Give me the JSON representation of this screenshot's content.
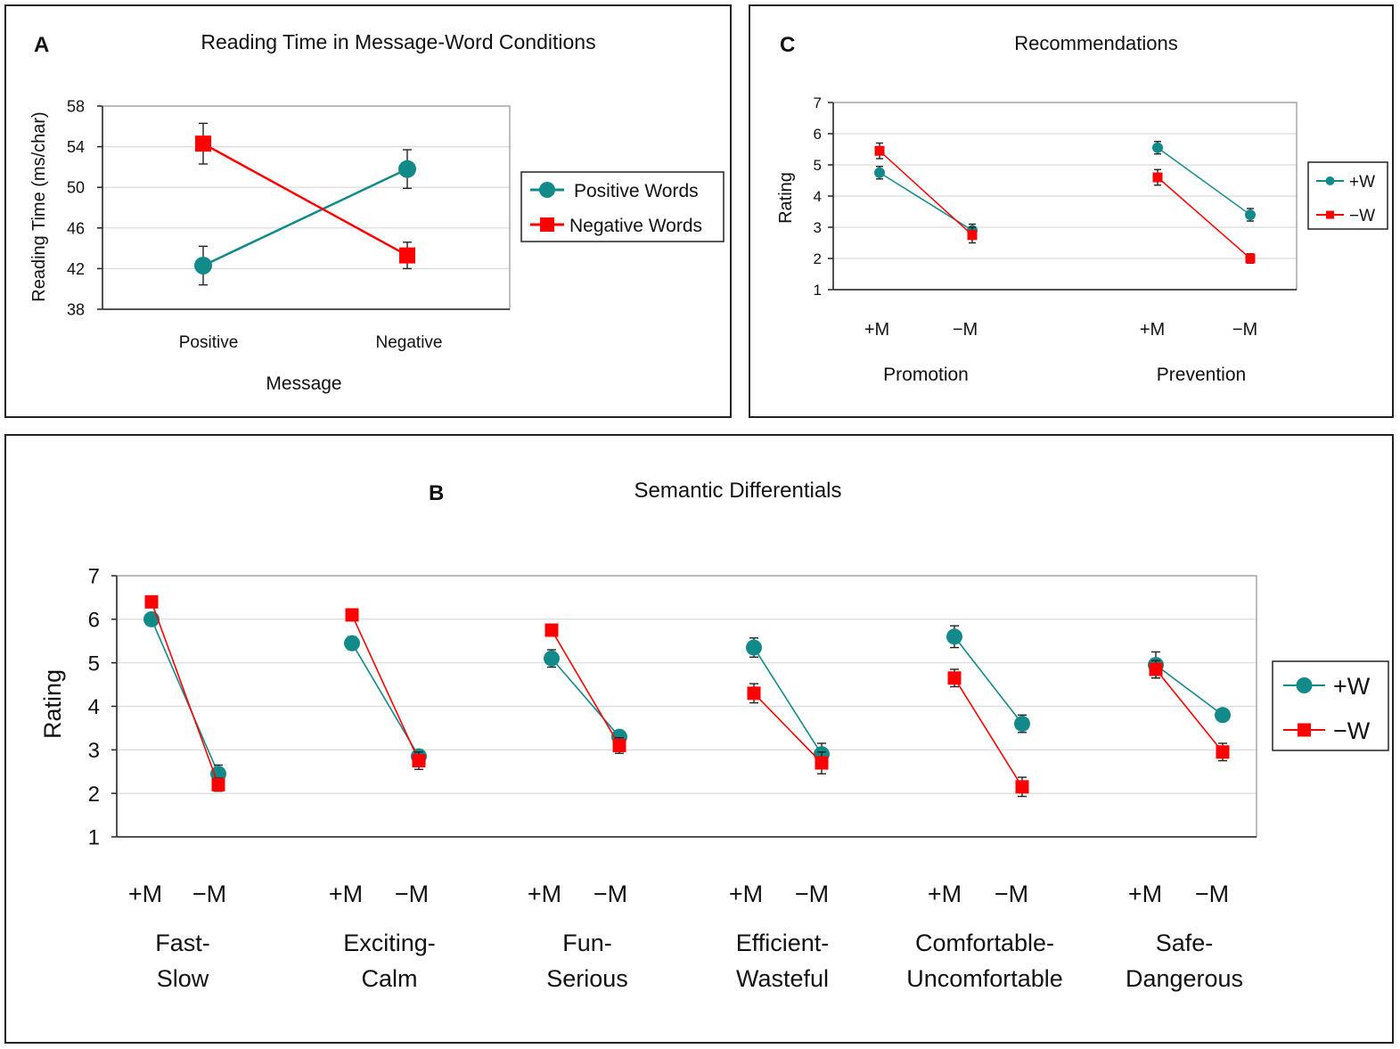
{
  "colors": {
    "teal": "#138A8A",
    "red": "#FF0000",
    "text": "#111111"
  },
  "chart_data": [
    {
      "id": "A",
      "type": "line",
      "panel_letter": "A",
      "title": "Reading Time in Message-Word Conditions",
      "xlabel": "Message",
      "ylabel": "Reading Time (ms/char)",
      "categories": [
        "Positive",
        "Negative"
      ],
      "ylim": [
        38,
        58
      ],
      "yticks": [
        "38",
        "42",
        "46",
        "50",
        "54",
        "58"
      ],
      "legend_position": "right",
      "series": [
        {
          "name": "Positive Words",
          "color": "#138A8A",
          "marker": "circle",
          "values": [
            42.3,
            51.8
          ],
          "err": [
            1.9,
            1.9
          ]
        },
        {
          "name": "Negative Words",
          "color": "#FF0000",
          "marker": "square",
          "values": [
            54.3,
            43.3
          ],
          "err": [
            2.0,
            1.3
          ]
        }
      ]
    },
    {
      "id": "C",
      "type": "line",
      "panel_letter": "C",
      "title": "Recommendations",
      "xlabel": "",
      "ylabel": "Rating",
      "groups": [
        "Promotion",
        "Prevention"
      ],
      "categories": [
        "+M",
        "−M",
        "+M",
        "−M"
      ],
      "ylim": [
        1,
        7
      ],
      "yticks": [
        "1",
        "2",
        "3",
        "4",
        "5",
        "6",
        "7"
      ],
      "legend_position": "right",
      "series": [
        {
          "name": "+W",
          "color": "#138A8A",
          "marker": "circle",
          "values": [
            4.75,
            2.9,
            5.55,
            3.4
          ],
          "err": [
            0.2,
            0.2,
            0.2,
            0.2
          ]
        },
        {
          "name": "−W",
          "color": "#FF0000",
          "marker": "square",
          "values": [
            5.45,
            2.75,
            4.6,
            2.0
          ],
          "err": [
            0.25,
            0.25,
            0.25,
            0.15
          ]
        }
      ]
    },
    {
      "id": "B",
      "type": "line",
      "panel_letter": "B",
      "title": "Semantic Differentials",
      "xlabel": "",
      "ylabel": "Rating",
      "groups": [
        [
          "Fast-",
          "Slow"
        ],
        [
          "Exciting-",
          "Calm"
        ],
        [
          "Fun-",
          "Serious"
        ],
        [
          "Efficient-",
          "Wasteful"
        ],
        [
          "Comfortable-",
          "Uncomfortable"
        ],
        [
          "Safe-",
          "Dangerous"
        ]
      ],
      "categories": [
        "+M",
        "−M",
        "+M",
        "−M",
        "+M",
        "−M",
        "+M",
        "−M",
        "+M",
        "−M",
        "+M",
        "−M"
      ],
      "ylim": [
        1,
        7
      ],
      "yticks": [
        "1",
        "2",
        "3",
        "4",
        "5",
        "6",
        "7"
      ],
      "legend_position": "right",
      "series": [
        {
          "name": "+W",
          "color": "#138A8A",
          "marker": "circle",
          "values": [
            6.0,
            2.45,
            5.45,
            2.85,
            5.1,
            3.3,
            5.35,
            2.9,
            5.6,
            3.6,
            4.95,
            3.8
          ],
          "err": [
            0.12,
            0.2,
            0.15,
            0.15,
            0.2,
            0.12,
            0.22,
            0.25,
            0.25,
            0.2,
            0.3,
            0.12
          ]
        },
        {
          "name": "−W",
          "color": "#FF0000",
          "marker": "square",
          "values": [
            6.4,
            2.2,
            6.1,
            2.75,
            5.75,
            3.1,
            4.3,
            2.7,
            4.65,
            2.15,
            4.85,
            2.95
          ],
          "err": [
            0.1,
            0.15,
            0.12,
            0.2,
            0.12,
            0.18,
            0.22,
            0.25,
            0.2,
            0.22,
            0.2,
            0.2
          ]
        }
      ]
    }
  ]
}
